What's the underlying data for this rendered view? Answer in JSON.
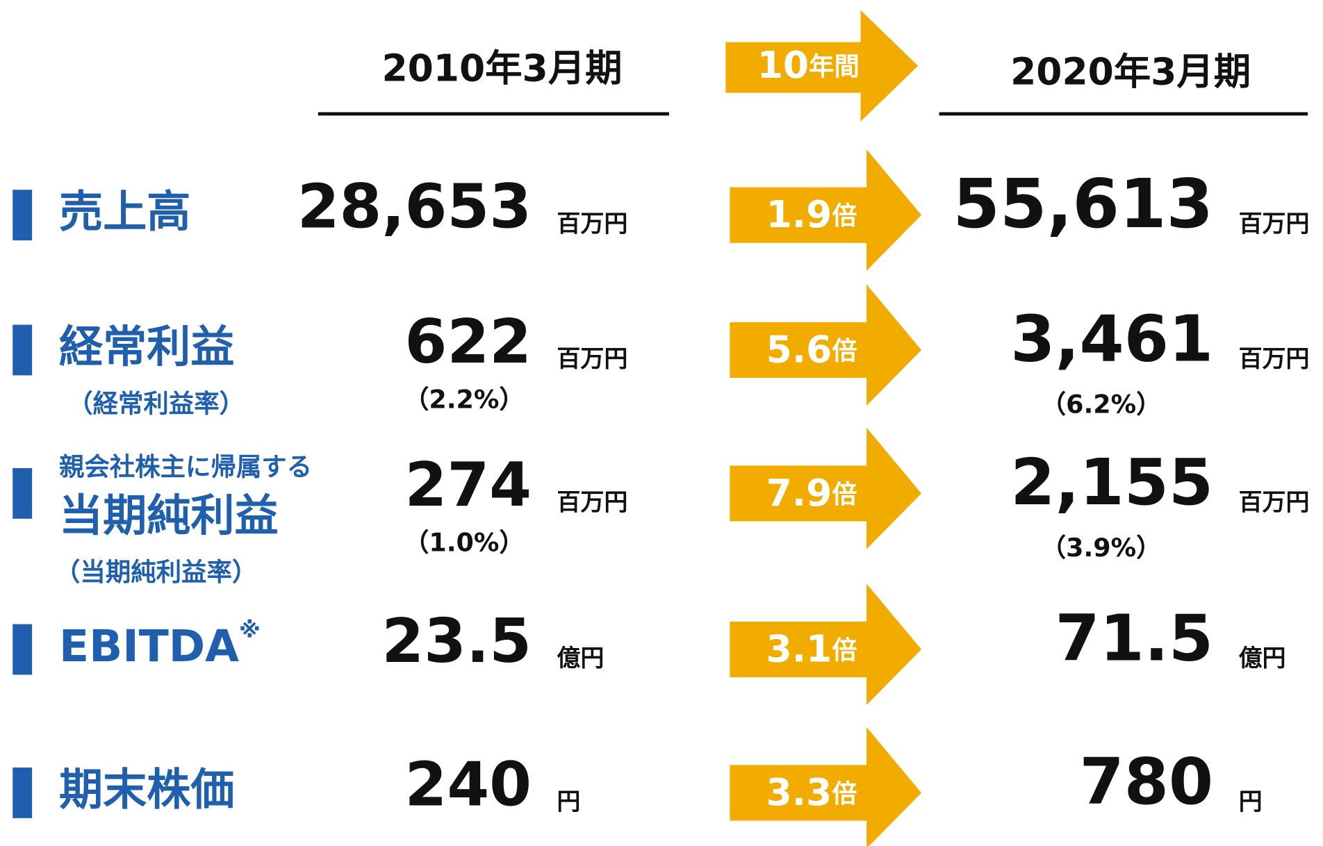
{
  "header": {
    "left": "2010年3月期",
    "middle": {
      "number": "10",
      "unit": "年間"
    },
    "right": "2020年3月期"
  },
  "rows": [
    {
      "label": "売上高",
      "left": {
        "value": "28,653",
        "unit": "百万円"
      },
      "multiplier": {
        "number": "1.9",
        "unit": "倍"
      },
      "right": {
        "value": "55,613",
        "unit": "百万円"
      }
    },
    {
      "label": "経常利益",
      "sublabel": "（経常利益率）",
      "left": {
        "value": "622",
        "unit": "百万円",
        "sub": "（2.2%）"
      },
      "multiplier": {
        "number": "5.6",
        "unit": "倍"
      },
      "right": {
        "value": "3,461",
        "unit": "百万円",
        "sub": "（6.2%）"
      }
    },
    {
      "prelabel": "親会社株主に帰属する",
      "label": "当期純利益",
      "sublabel": "（当期純利益率）",
      "left": {
        "value": "274",
        "unit": "百万円",
        "sub": "（1.0%）"
      },
      "multiplier": {
        "number": "7.9",
        "unit": "倍"
      },
      "right": {
        "value": "2,155",
        "unit": "百万円",
        "sub": "（3.9%）"
      }
    },
    {
      "label": "EBITDA",
      "note": "※",
      "left": {
        "value": "23.5",
        "unit": "億円"
      },
      "multiplier": {
        "number": "3.1",
        "unit": "倍"
      },
      "right": {
        "value": "71.5",
        "unit": "億円"
      }
    },
    {
      "label": "期末株価",
      "left": {
        "value": "240",
        "unit": "円"
      },
      "multiplier": {
        "number": "3.3",
        "unit": "倍"
      },
      "right": {
        "value": "780",
        "unit": "円"
      }
    }
  ]
}
